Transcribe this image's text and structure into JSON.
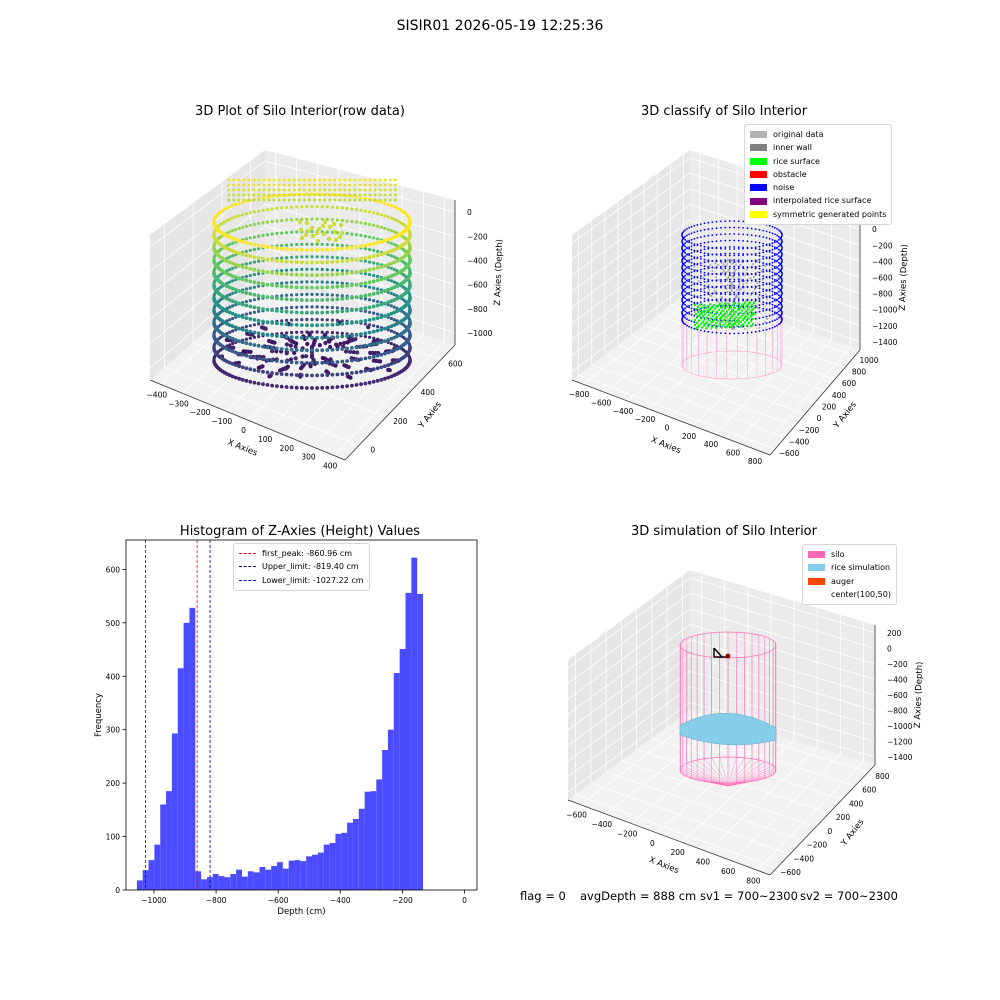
{
  "figure": {
    "title": "SISIR01 2026-05-19 12:25:36"
  },
  "status": {
    "flag": "flag = 0",
    "avg_depth": "avgDepth = 888 cm",
    "sv1": "sv1 = 700~2300",
    "sv2": "sv2 = 700~2300"
  },
  "chart_data": [
    {
      "id": "raw-3d",
      "type": "scatter",
      "title": "3D Plot of Silo Interior(row data)",
      "xlabel": "X Axies",
      "ylabel": "Y Axies",
      "zlabel": "Z Axies (Depth)",
      "x_ticks": [
        "−400",
        "−300",
        "−200",
        "−100",
        "0",
        "100",
        "200",
        "300",
        "400"
      ],
      "y_ticks": [
        "0",
        "200",
        "400",
        "600"
      ],
      "z_ticks": [
        "0",
        "−200",
        "−400",
        "−600",
        "−800",
        "−1000"
      ],
      "xlim": [
        -420,
        420
      ],
      "ylim": [
        -150,
        700
      ],
      "zlim": [
        -1100,
        0
      ],
      "colormap": "viridis",
      "grid": true
    },
    {
      "id": "classify-3d",
      "type": "scatter",
      "title": "3D classify of Silo Interior",
      "xlabel": "X Axies",
      "ylabel": "Y Axies",
      "zlabel": "Z Axies (Depth)",
      "x_ticks": [
        "−800",
        "−600",
        "−400",
        "−200",
        "0",
        "200",
        "400",
        "600",
        "800"
      ],
      "y_ticks": [
        "−600",
        "−400",
        "−200",
        "0",
        "200",
        "400",
        "600",
        "800",
        "1000"
      ],
      "z_ticks": [
        "200",
        "0",
        "−200",
        "−400",
        "−600",
        "−800",
        "−1000",
        "−1200",
        "−1400"
      ],
      "legend": [
        {
          "label": "original data",
          "color": "#b3b3b3"
        },
        {
          "label": "inner wall",
          "color": "#808080"
        },
        {
          "label": "rice surface",
          "color": "#00ff00"
        },
        {
          "label": "obstacle",
          "color": "#ff0000"
        },
        {
          "label": "noise",
          "color": "#0000ff"
        },
        {
          "label": "interpolated rice surface",
          "color": "#800080"
        },
        {
          "label": "symmetric generated points",
          "color": "#ffff00"
        }
      ],
      "legend_position": "top-right",
      "grid": true
    },
    {
      "id": "histogram",
      "type": "bar",
      "title": "Histogram of Z-Axies (Height) Values",
      "xlabel": "Depth (cm)",
      "ylabel": "Frequency",
      "xlim": [
        -1090,
        40
      ],
      "ylim": [
        0,
        655
      ],
      "x_ticks": [
        -1000,
        -800,
        -600,
        -400,
        -200,
        0
      ],
      "y_ticks": [
        0,
        100,
        200,
        300,
        400,
        500,
        600
      ],
      "bin_width": 18.8,
      "bin_start": -1055,
      "values": [
        18,
        37,
        56,
        85,
        160,
        185,
        293,
        415,
        500,
        528,
        35,
        20,
        24,
        30,
        26,
        24,
        30,
        38,
        25,
        35,
        33,
        43,
        38,
        45,
        52,
        40,
        55,
        56,
        54,
        63,
        66,
        70,
        85,
        88,
        105,
        107,
        126,
        133,
        152,
        184,
        185,
        207,
        262,
        300,
        406,
        451,
        556,
        622,
        554
      ],
      "bar_color": "#4b4bff",
      "lines": [
        {
          "label": "first_peak: -860.96 cm",
          "value": -860.96,
          "color": "#ff0000"
        },
        {
          "label": "Upper_limit: -819.40 cm",
          "value": -819.4,
          "color": "#00008b"
        },
        {
          "label": "Lower_limit: -1027.22 cm",
          "value": -1027.22,
          "color": "#0000ff"
        }
      ],
      "legend_position": "top-center"
    },
    {
      "id": "simulation-3d",
      "type": "scatter",
      "title": "3D simulation of Silo Interior",
      "xlabel": "X Axies",
      "ylabel": "Y Axies",
      "zlabel": "Z Axies (Depth)",
      "x_ticks": [
        "−600",
        "−400",
        "−200",
        "0",
        "200",
        "400",
        "600",
        "800"
      ],
      "y_ticks": [
        "−600",
        "−400",
        "−200",
        "0",
        "200",
        "400",
        "600",
        "800"
      ],
      "z_ticks": [
        "200",
        "0",
        "−200",
        "−400",
        "−600",
        "−800",
        "−1000",
        "−1200",
        "−1400"
      ],
      "legend": [
        {
          "label": "silo",
          "color": "#ff69b4"
        },
        {
          "label": "rice simulation",
          "color": "#87ceeb"
        },
        {
          "label": "auger",
          "color": "#ff4500"
        },
        {
          "label": "center(100,50)",
          "color": "#ffffff"
        }
      ],
      "legend_position": "top-right",
      "grid": true
    }
  ]
}
